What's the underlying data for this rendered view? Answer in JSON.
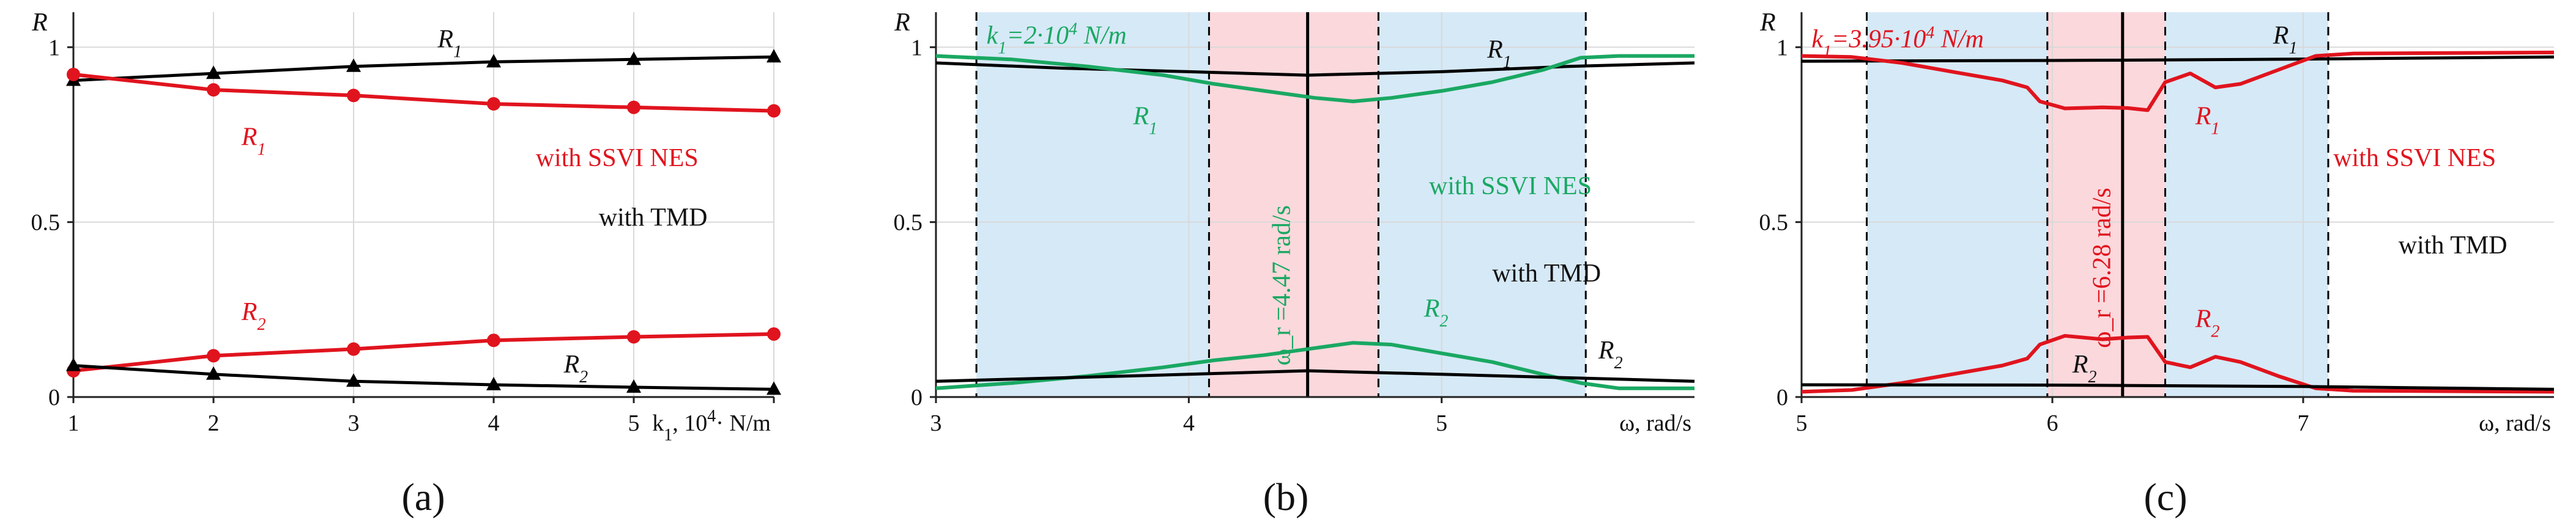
{
  "chart_data": [
    {
      "panel_label": "(a)",
      "type": "line",
      "ylabel": "R",
      "xlabel_html": "k<tspan baseline-shift=\"sub\" font-size=\"28\">1</tspan>, 10<tspan baseline-shift=\"super\" font-size=\"28\">4</tspan>· N/m",
      "xlim": [
        1,
        6
      ],
      "ylim": [
        0,
        1.1
      ],
      "xticks": [
        1,
        2,
        3,
        4,
        5,
        6
      ],
      "xtick_labels": [
        "1",
        "2",
        "3",
        "4",
        "5",
        ""
      ],
      "yticks": [
        0,
        0.5,
        1
      ],
      "ytick_labels": [
        "0",
        "0.5",
        "1"
      ],
      "grid": true,
      "series": [
        {
          "color": "#000000",
          "marker": "triangle",
          "x": [
            1,
            2,
            3,
            4,
            5,
            6
          ],
          "y": [
            0.905,
            0.925,
            0.945,
            0.958,
            0.965,
            0.972
          ]
        },
        {
          "color": "#e0141e",
          "marker": "circle",
          "x": [
            1,
            2,
            3,
            4,
            5,
            6
          ],
          "y": [
            0.922,
            0.878,
            0.862,
            0.838,
            0.828,
            0.818
          ]
        },
        {
          "color": "#e0141e",
          "marker": "circle",
          "x": [
            1,
            2,
            3,
            4,
            5,
            6
          ],
          "y": [
            0.075,
            0.118,
            0.137,
            0.162,
            0.172,
            0.18
          ]
        },
        {
          "color": "#000000",
          "marker": "triangle",
          "x": [
            1,
            2,
            3,
            4,
            5,
            6
          ],
          "y": [
            0.09,
            0.065,
            0.045,
            0.035,
            0.028,
            0.022
          ]
        }
      ],
      "annotations": [
        {
          "html": "R<tspan baseline-shift=\"sub\" font-size=\"28\">1</tspan>",
          "x": 3.6,
          "y": 1.0,
          "color": "#111111",
          "italic": true
        },
        {
          "html": "R<tspan baseline-shift=\"sub\" font-size=\"28\">1</tspan>",
          "x": 2.2,
          "y": 0.72,
          "color": "#e0141e",
          "italic": true
        },
        {
          "html": "R<tspan baseline-shift=\"sub\" font-size=\"28\">2</tspan>",
          "x": 2.2,
          "y": 0.22,
          "color": "#e0141e",
          "italic": true
        },
        {
          "html": "R<tspan baseline-shift=\"sub\" font-size=\"28\">2</tspan>",
          "x": 4.5,
          "y": 0.07,
          "color": "#111111",
          "italic": true
        },
        {
          "html": "with SSVI NES",
          "x": 4.3,
          "y": 0.66,
          "color": "#e0141e"
        },
        {
          "html": "with TMD",
          "x": 4.75,
          "y": 0.49,
          "color": "#111111"
        }
      ]
    },
    {
      "panel_label": "(b)",
      "type": "line",
      "ylabel": "R",
      "xlabel_html": "ω, rad/s",
      "xlim": [
        3,
        6
      ],
      "ylim": [
        0,
        1.1
      ],
      "xticks": [
        3,
        4,
        5
      ],
      "xtick_labels": [
        "3",
        "4",
        "5"
      ],
      "yticks": [
        0,
        0.5,
        1
      ],
      "ytick_labels": [
        "0",
        "0.5",
        "1"
      ],
      "grid": true,
      "bands": [
        {
          "from": 3.16,
          "to": 4.08,
          "color": "#d6e9f7"
        },
        {
          "from": 4.08,
          "to": 4.75,
          "color": "#fbd8dc"
        },
        {
          "from": 4.75,
          "to": 5.57,
          "color": "#d6e9f7"
        }
      ],
      "dashed_lines": [
        3.16,
        4.08,
        4.75,
        5.57
      ],
      "solid_lines": [
        4.47
      ],
      "series": [
        {
          "color": "#000000",
          "x": [
            3.0,
            3.5,
            4.0,
            4.47,
            5.0,
            5.5,
            6.0
          ],
          "y": [
            0.955,
            0.94,
            0.93,
            0.92,
            0.93,
            0.945,
            0.955
          ]
        },
        {
          "color": "#1aa862",
          "x": [
            3.0,
            3.3,
            3.6,
            3.9,
            4.1,
            4.3,
            4.5,
            4.65,
            4.8,
            5.0,
            5.2,
            5.4,
            5.55,
            5.7,
            6.0
          ],
          "y": [
            0.975,
            0.965,
            0.945,
            0.92,
            0.895,
            0.875,
            0.855,
            0.845,
            0.855,
            0.875,
            0.9,
            0.935,
            0.97,
            0.975,
            0.975
          ]
        },
        {
          "color": "#1aa862",
          "x": [
            3.0,
            3.3,
            3.6,
            3.9,
            4.1,
            4.3,
            4.5,
            4.65,
            4.8,
            5.0,
            5.2,
            5.4,
            5.55,
            5.7,
            6.0
          ],
          "y": [
            0.025,
            0.04,
            0.06,
            0.085,
            0.105,
            0.12,
            0.14,
            0.155,
            0.15,
            0.125,
            0.1,
            0.065,
            0.04,
            0.025,
            0.025
          ]
        },
        {
          "color": "#000000",
          "x": [
            3.0,
            3.5,
            4.0,
            4.47,
            5.0,
            5.5,
            6.0
          ],
          "y": [
            0.045,
            0.055,
            0.065,
            0.075,
            0.065,
            0.055,
            0.045
          ]
        }
      ],
      "annotations": [
        {
          "html": "k<tspan baseline-shift=\"sub\" font-size=\"28\">1</tspan>=2·10<tspan baseline-shift=\"super\" font-size=\"28\">4</tspan> N/m",
          "x": 3.2,
          "y": 1.01,
          "color": "#1aa862",
          "italic": true
        },
        {
          "html": "R<tspan baseline-shift=\"sub\" font-size=\"28\">1</tspan>",
          "x": 3.78,
          "y": 0.78,
          "color": "#1aa862",
          "italic": true
        },
        {
          "html": "R<tspan baseline-shift=\"sub\" font-size=\"28\">1</tspan>",
          "x": 5.18,
          "y": 0.97,
          "color": "#111111",
          "italic": true
        },
        {
          "html": "with SSVI NES",
          "x": 4.95,
          "y": 0.58,
          "color": "#1aa862"
        },
        {
          "html": "with TMD",
          "x": 5.2,
          "y": 0.33,
          "color": "#111111"
        },
        {
          "html": "R<tspan baseline-shift=\"sub\" font-size=\"28\">2</tspan>",
          "x": 4.93,
          "y": 0.23,
          "color": "#1aa862",
          "italic": true
        },
        {
          "html": "R<tspan baseline-shift=\"sub\" font-size=\"28\">2</tspan>",
          "x": 5.62,
          "y": 0.11,
          "color": "#111111",
          "italic": true
        },
        {
          "html": "ω_r =4.47 rad/s",
          "x": 4.4,
          "y": 0.09,
          "color": "#1aa862",
          "rotate": -90
        }
      ]
    },
    {
      "panel_label": "(c)",
      "type": "line",
      "ylabel": "R",
      "xlabel_html": "ω, rad/s",
      "xlim": [
        5,
        8
      ],
      "ylim": [
        0,
        1.1
      ],
      "xticks": [
        5,
        6,
        7
      ],
      "xtick_labels": [
        "5",
        "6",
        "7"
      ],
      "yticks": [
        0,
        0.5,
        1
      ],
      "ytick_labels": [
        "0",
        "0.5",
        "1"
      ],
      "grid": true,
      "bands": [
        {
          "from": 5.26,
          "to": 5.98,
          "color": "#d6e9f7"
        },
        {
          "from": 5.98,
          "to": 6.45,
          "color": "#fbd8dc"
        },
        {
          "from": 6.45,
          "to": 7.1,
          "color": "#d6e9f7"
        }
      ],
      "dashed_lines": [
        5.26,
        5.98,
        6.45,
        7.1
      ],
      "solid_lines": [
        6.28
      ],
      "series": [
        {
          "color": "#000000",
          "x": [
            5.0,
            6.0,
            6.28,
            7.0,
            8.0
          ],
          "y": [
            0.96,
            0.962,
            0.963,
            0.966,
            0.972
          ]
        },
        {
          "color": "#e0141e",
          "x": [
            5.0,
            5.2,
            5.4,
            5.6,
            5.8,
            5.9,
            5.95,
            6.05,
            6.2,
            6.3,
            6.38,
            6.45,
            6.55,
            6.65,
            6.75,
            6.9,
            7.05,
            7.2,
            8.0
          ],
          "y": [
            0.975,
            0.972,
            0.955,
            0.93,
            0.905,
            0.885,
            0.845,
            0.825,
            0.828,
            0.826,
            0.82,
            0.9,
            0.925,
            0.885,
            0.895,
            0.935,
            0.975,
            0.982,
            0.985
          ]
        },
        {
          "color": "#e0141e",
          "x": [
            5.0,
            5.2,
            5.4,
            5.6,
            5.8,
            5.9,
            5.95,
            6.05,
            6.2,
            6.3,
            6.38,
            6.45,
            6.55,
            6.65,
            6.75,
            6.9,
            7.05,
            7.2,
            8.0
          ],
          "y": [
            0.015,
            0.02,
            0.04,
            0.065,
            0.09,
            0.11,
            0.15,
            0.175,
            0.165,
            0.17,
            0.172,
            0.1,
            0.085,
            0.115,
            0.1,
            0.06,
            0.025,
            0.018,
            0.015
          ]
        },
        {
          "color": "#000000",
          "x": [
            5.0,
            6.0,
            6.28,
            7.0,
            8.0
          ],
          "y": [
            0.035,
            0.034,
            0.033,
            0.03,
            0.022
          ]
        }
      ],
      "annotations": [
        {
          "html": "k<tspan baseline-shift=\"sub\" font-size=\"28\">1</tspan>=3.95·10<tspan baseline-shift=\"super\" font-size=\"28\">4</tspan> N/m",
          "x": 5.04,
          "y": 1.0,
          "color": "#e0141e",
          "italic": true
        },
        {
          "html": "R<tspan baseline-shift=\"sub\" font-size=\"28\">1</tspan>",
          "x": 6.88,
          "y": 1.01,
          "color": "#111111",
          "italic": true
        },
        {
          "html": "R<tspan baseline-shift=\"sub\" font-size=\"28\">1</tspan>",
          "x": 6.57,
          "y": 0.78,
          "color": "#e0141e",
          "italic": true
        },
        {
          "html": "with SSVI NES",
          "x": 7.12,
          "y": 0.66,
          "color": "#e0141e"
        },
        {
          "html": "with TMD",
          "x": 7.38,
          "y": 0.41,
          "color": "#111111"
        },
        {
          "html": "R<tspan baseline-shift=\"sub\" font-size=\"28\">2</tspan>",
          "x": 6.57,
          "y": 0.2,
          "color": "#e0141e",
          "italic": true
        },
        {
          "html": "R<tspan baseline-shift=\"sub\" font-size=\"28\">2</tspan>",
          "x": 6.08,
          "y": 0.07,
          "color": "#111111",
          "italic": true
        },
        {
          "html": "ω_r =6.28 rad/s",
          "x": 6.23,
          "y": 0.14,
          "color": "#e0141e",
          "rotate": -90
        }
      ]
    }
  ]
}
